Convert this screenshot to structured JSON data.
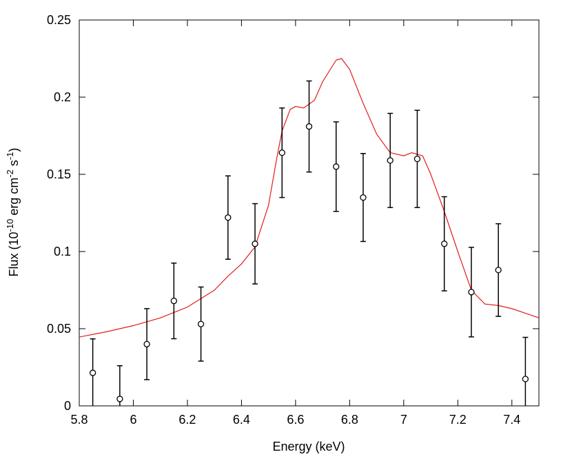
{
  "chart_data": {
    "type": "scatter",
    "xlabel": "Energy (keV)",
    "ylabel": [
      "Flux (10",
      "-10",
      " erg cm",
      "-2",
      " s",
      "-1",
      ")"
    ],
    "xlim": [
      5.8,
      7.5
    ],
    "xticks": [
      5.8,
      6,
      6.2,
      6.4,
      6.6,
      6.8,
      7,
      7.2,
      7.4
    ],
    "ylim": [
      0,
      0.25
    ],
    "yticks": [
      0,
      0.05,
      0.1,
      0.15,
      0.2,
      0.25
    ],
    "points": {
      "color": "#000000",
      "x": [
        5.85,
        5.95,
        6.05,
        6.15,
        6.25,
        6.35,
        6.45,
        6.55,
        6.65,
        6.75,
        6.85,
        6.95,
        7.05,
        7.15,
        7.25,
        7.35,
        7.45
      ],
      "y": [
        0.0214,
        0.0045,
        0.04,
        0.068,
        0.053,
        0.122,
        0.105,
        0.164,
        0.181,
        0.155,
        0.135,
        0.159,
        0.16,
        0.105,
        0.0737,
        0.088,
        0.0174
      ],
      "yerr": [
        0.022,
        0.0215,
        0.023,
        0.0245,
        0.024,
        0.027,
        0.026,
        0.029,
        0.0295,
        0.029,
        0.0285,
        0.0305,
        0.0315,
        0.0305,
        0.029,
        0.03,
        0.027
      ]
    },
    "model": {
      "color": "#e41a1c",
      "x": [
        5.8,
        5.9,
        6.0,
        6.1,
        6.2,
        6.3,
        6.35,
        6.4,
        6.45,
        6.5,
        6.53,
        6.55,
        6.58,
        6.6,
        6.63,
        6.67,
        6.7,
        6.75,
        6.77,
        6.8,
        6.85,
        6.9,
        6.95,
        7.0,
        7.03,
        7.07,
        7.1,
        7.15,
        7.2,
        7.25,
        7.3,
        7.35,
        7.4,
        7.45,
        7.5
      ],
      "y": [
        0.0446,
        0.048,
        0.052,
        0.057,
        0.064,
        0.075,
        0.084,
        0.092,
        0.103,
        0.13,
        0.16,
        0.178,
        0.192,
        0.194,
        0.193,
        0.198,
        0.21,
        0.224,
        0.225,
        0.218,
        0.196,
        0.176,
        0.164,
        0.162,
        0.164,
        0.162,
        0.15,
        0.126,
        0.1,
        0.075,
        0.066,
        0.065,
        0.063,
        0.06,
        0.057
      ]
    }
  }
}
